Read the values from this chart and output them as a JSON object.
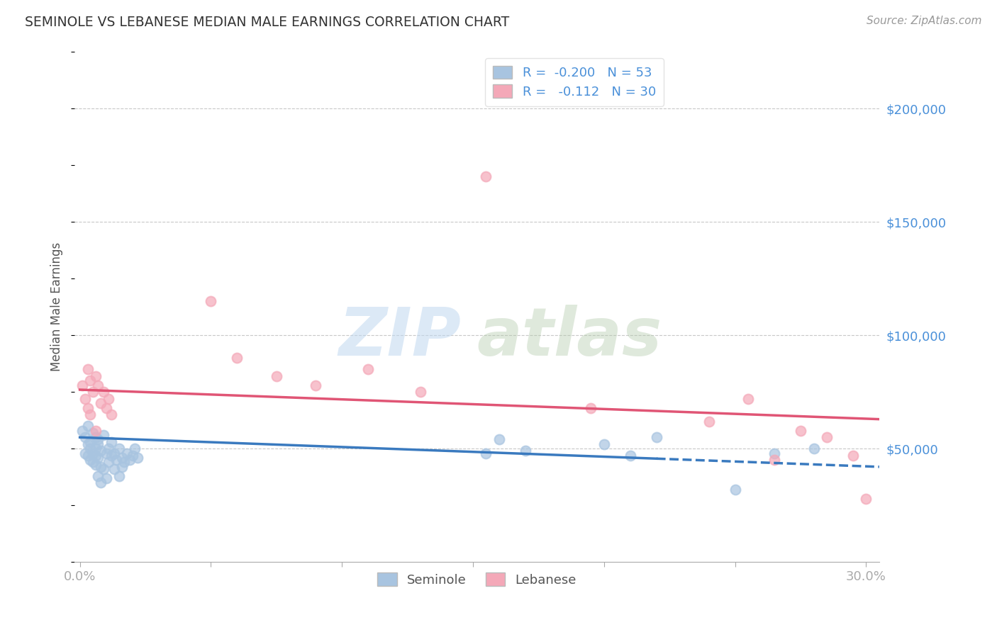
{
  "title": "SEMINOLE VS LEBANESE MEDIAN MALE EARNINGS CORRELATION CHART",
  "source": "Source: ZipAtlas.com",
  "ylabel": "Median Male Earnings",
  "xlim": [
    -0.002,
    0.305
  ],
  "ylim": [
    0,
    225000
  ],
  "ytick_vals": [
    50000,
    100000,
    150000,
    200000
  ],
  "ytick_labels": [
    "$50,000",
    "$100,000",
    "$150,000",
    "$200,000"
  ],
  "xticks": [
    0.0,
    0.05,
    0.1,
    0.15,
    0.2,
    0.25,
    0.3
  ],
  "xtick_labels": [
    "0.0%",
    "",
    "",
    "",
    "",
    "",
    "30.0%"
  ],
  "seminole_R": -0.2,
  "seminole_N": 53,
  "lebanese_R": -0.112,
  "lebanese_N": 30,
  "seminole_color": "#a8c4e0",
  "lebanese_color": "#f4a8b8",
  "seminole_line_color": "#3a7abf",
  "lebanese_line_color": "#e05575",
  "background_color": "#ffffff",
  "grid_color": "#c8c8c8",
  "title_color": "#333333",
  "axis_label_color": "#555555",
  "tick_color": "#4a90d9",
  "watermark_zip": "ZIP",
  "watermark_atlas": "atlas",
  "sem_line_solid_end": 0.22,
  "sem_line_x0": 0.0,
  "sem_line_y0": 55000,
  "sem_line_x1": 0.305,
  "sem_line_y1": 42000,
  "leb_line_x0": 0.0,
  "leb_line_y0": 76000,
  "leb_line_x1": 0.305,
  "leb_line_y1": 63000,
  "seminole_x": [
    0.001,
    0.002,
    0.002,
    0.003,
    0.003,
    0.003,
    0.004,
    0.004,
    0.004,
    0.005,
    0.005,
    0.005,
    0.006,
    0.006,
    0.006,
    0.006,
    0.007,
    0.007,
    0.007,
    0.007,
    0.008,
    0.008,
    0.008,
    0.009,
    0.009,
    0.01,
    0.01,
    0.011,
    0.011,
    0.012,
    0.012,
    0.013,
    0.013,
    0.014,
    0.015,
    0.015,
    0.016,
    0.016,
    0.017,
    0.018,
    0.019,
    0.02,
    0.021,
    0.022,
    0.155,
    0.16,
    0.17,
    0.2,
    0.21,
    0.22,
    0.25,
    0.265,
    0.28
  ],
  "seminole_y": [
    58000,
    55000,
    48000,
    52000,
    47000,
    60000,
    50000,
    45000,
    53000,
    48000,
    57000,
    44000,
    55000,
    50000,
    43000,
    47000,
    52000,
    46000,
    38000,
    54000,
    49000,
    42000,
    35000,
    56000,
    41000,
    48000,
    37000,
    50000,
    44000,
    47000,
    53000,
    41000,
    48000,
    45000,
    50000,
    38000,
    46000,
    42000,
    44000,
    48000,
    45000,
    47000,
    50000,
    46000,
    48000,
    54000,
    49000,
    52000,
    47000,
    55000,
    32000,
    48000,
    50000
  ],
  "lebanese_x": [
    0.001,
    0.002,
    0.003,
    0.003,
    0.004,
    0.004,
    0.005,
    0.006,
    0.006,
    0.007,
    0.008,
    0.009,
    0.01,
    0.011,
    0.012,
    0.05,
    0.06,
    0.075,
    0.09,
    0.11,
    0.13,
    0.155,
    0.195,
    0.24,
    0.255,
    0.265,
    0.275,
    0.285,
    0.295,
    0.3
  ],
  "lebanese_y": [
    78000,
    72000,
    85000,
    68000,
    80000,
    65000,
    75000,
    82000,
    58000,
    78000,
    70000,
    75000,
    68000,
    72000,
    65000,
    115000,
    90000,
    82000,
    78000,
    85000,
    75000,
    170000,
    68000,
    62000,
    72000,
    45000,
    58000,
    55000,
    47000,
    28000
  ]
}
